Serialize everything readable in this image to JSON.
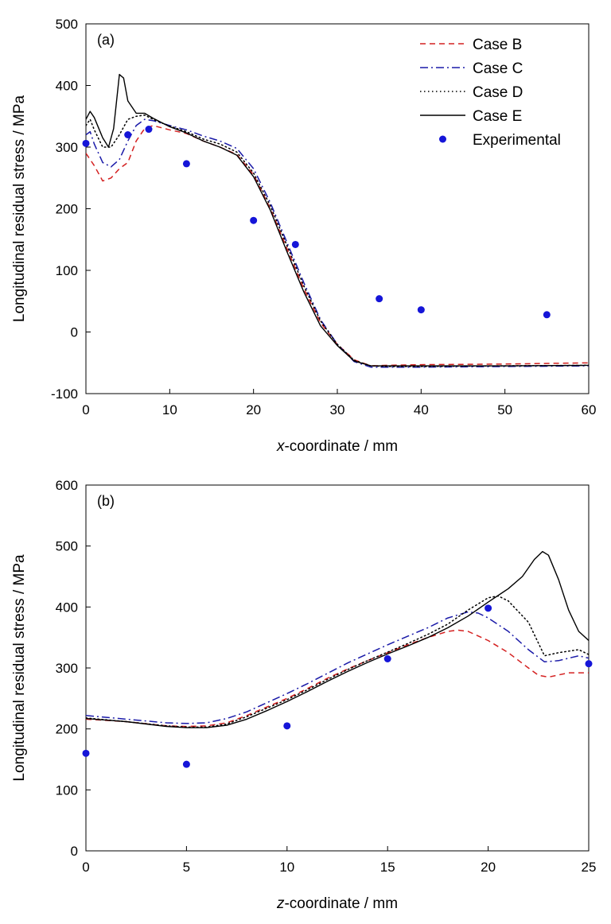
{
  "chart_data": [
    {
      "type": "line",
      "panel_label": "(a)",
      "xlabel_var": "x",
      "xlabel_rest": "-coordinate / mm",
      "ylabel": "Longitudinal residual stress / MPa",
      "xlim": [
        0,
        60
      ],
      "ylim": [
        -100,
        500
      ],
      "xticks": [
        0,
        10,
        20,
        30,
        40,
        50,
        60
      ],
      "yticks": [
        -100,
        0,
        100,
        200,
        300,
        400,
        500
      ],
      "grid": false,
      "legend_position": "top-right",
      "series": [
        {
          "name": "Case B",
          "style": "dashed",
          "color": "#d42020",
          "points": [
            [
              0,
              290
            ],
            [
              1,
              270
            ],
            [
              2,
              245
            ],
            [
              3,
              250
            ],
            [
              4,
              265
            ],
            [
              5,
              275
            ],
            [
              6,
              310
            ],
            [
              7,
              330
            ],
            [
              8,
              335
            ],
            [
              10,
              328
            ],
            [
              12,
              322
            ],
            [
              14,
              310
            ],
            [
              16,
              300
            ],
            [
              18,
              288
            ],
            [
              20,
              255
            ],
            [
              22,
              200
            ],
            [
              24,
              135
            ],
            [
              26,
              70
            ],
            [
              28,
              15
            ],
            [
              30,
              -20
            ],
            [
              32,
              -45
            ],
            [
              34,
              -55
            ],
            [
              36,
              -54
            ],
            [
              40,
              -53
            ],
            [
              50,
              -52
            ],
            [
              60,
              -50
            ]
          ]
        },
        {
          "name": "Case C",
          "style": "dashdot",
          "color": "#1a1aa8",
          "points": [
            [
              0,
              320
            ],
            [
              0.5,
              325
            ],
            [
              1,
              305
            ],
            [
              2,
              275
            ],
            [
              3,
              268
            ],
            [
              4,
              280
            ],
            [
              5,
              310
            ],
            [
              6,
              335
            ],
            [
              7,
              345
            ],
            [
              8,
              343
            ],
            [
              10,
              335
            ],
            [
              12,
              328
            ],
            [
              14,
              318
            ],
            [
              16,
              310
            ],
            [
              18,
              298
            ],
            [
              20,
              265
            ],
            [
              22,
              210
            ],
            [
              24,
              145
            ],
            [
              26,
              80
            ],
            [
              28,
              20
            ],
            [
              30,
              -20
            ],
            [
              32,
              -48
            ],
            [
              34,
              -57
            ],
            [
              36,
              -57
            ],
            [
              40,
              -57
            ],
            [
              50,
              -56
            ],
            [
              60,
              -55
            ]
          ]
        },
        {
          "name": "Case D",
          "style": "dotted",
          "color": "#000000",
          "points": [
            [
              0,
              335
            ],
            [
              0.5,
              345
            ],
            [
              1,
              328
            ],
            [
              2,
              300
            ],
            [
              3,
              300
            ],
            [
              4,
              320
            ],
            [
              5,
              345
            ],
            [
              6,
              350
            ],
            [
              7,
              352
            ],
            [
              8,
              345
            ],
            [
              10,
              334
            ],
            [
              12,
              325
            ],
            [
              14,
              313
            ],
            [
              16,
              305
            ],
            [
              18,
              292
            ],
            [
              20,
              258
            ],
            [
              22,
              205
            ],
            [
              24,
              140
            ],
            [
              26,
              75
            ],
            [
              28,
              18
            ],
            [
              30,
              -20
            ],
            [
              32,
              -46
            ],
            [
              34,
              -55
            ],
            [
              36,
              -56
            ],
            [
              40,
              -56
            ],
            [
              50,
              -55
            ],
            [
              60,
              -54
            ]
          ]
        },
        {
          "name": "Case E",
          "style": "solid",
          "color": "#000000",
          "points": [
            [
              0,
              345
            ],
            [
              0.5,
              358
            ],
            [
              1,
              348
            ],
            [
              2,
              315
            ],
            [
              2.7,
              300
            ],
            [
              3.3,
              330
            ],
            [
              4,
              418
            ],
            [
              4.5,
              412
            ],
            [
              5,
              375
            ],
            [
              6,
              355
            ],
            [
              7,
              355
            ],
            [
              8,
              347
            ],
            [
              10,
              333
            ],
            [
              12,
              323
            ],
            [
              14,
              310
            ],
            [
              16,
              300
            ],
            [
              18,
              287
            ],
            [
              20,
              252
            ],
            [
              22,
              198
            ],
            [
              24,
              130
            ],
            [
              26,
              65
            ],
            [
              28,
              10
            ],
            [
              30,
              -22
            ],
            [
              32,
              -47
            ],
            [
              34,
              -55
            ],
            [
              36,
              -55
            ],
            [
              40,
              -55
            ],
            [
              50,
              -55
            ],
            [
              60,
              -54
            ]
          ]
        }
      ],
      "experimental": {
        "name": "Experimental",
        "color": "#1515d8",
        "points": [
          [
            0,
            306
          ],
          [
            5,
            320
          ],
          [
            7.5,
            329
          ],
          [
            12,
            273
          ],
          [
            20,
            181
          ],
          [
            25,
            142
          ],
          [
            35,
            54
          ],
          [
            40,
            36
          ],
          [
            55,
            28
          ]
        ]
      }
    },
    {
      "type": "line",
      "panel_label": "(b)",
      "xlabel_var": "z",
      "xlabel_rest": "-coordinate / mm",
      "ylabel": "Longitudinal residual stress / MPa",
      "xlim": [
        0,
        25
      ],
      "ylim": [
        0,
        600
      ],
      "xticks": [
        0,
        5,
        10,
        15,
        20,
        25
      ],
      "yticks": [
        0,
        100,
        200,
        300,
        400,
        500,
        600
      ],
      "grid": false,
      "series": [
        {
          "name": "Case B",
          "style": "dashed",
          "color": "#d42020",
          "points": [
            [
              0,
              216
            ],
            [
              2,
              212
            ],
            [
              4,
              205
            ],
            [
              5,
              204
            ],
            [
              6,
              205
            ],
            [
              7,
              210
            ],
            [
              8,
              222
            ],
            [
              9,
              236
            ],
            [
              10,
              250
            ],
            [
              11,
              266
            ],
            [
              12,
              283
            ],
            [
              13,
              298
            ],
            [
              14,
              312
            ],
            [
              15,
              325
            ],
            [
              16,
              338
            ],
            [
              17,
              350
            ],
            [
              18,
              360
            ],
            [
              18.5,
              362
            ],
            [
              19,
              360
            ],
            [
              20,
              345
            ],
            [
              21,
              325
            ],
            [
              22,
              300
            ],
            [
              22.5,
              288
            ],
            [
              23,
              285
            ],
            [
              24,
              292
            ],
            [
              25,
              292
            ]
          ]
        },
        {
          "name": "Case C",
          "style": "dashdot",
          "color": "#1a1aa8",
          "points": [
            [
              0,
              222
            ],
            [
              2,
              216
            ],
            [
              4,
              210
            ],
            [
              5,
              209
            ],
            [
              6,
              210
            ],
            [
              7,
              217
            ],
            [
              8,
              228
            ],
            [
              9,
              243
            ],
            [
              10,
              258
            ],
            [
              11,
              274
            ],
            [
              12,
              291
            ],
            [
              13,
              308
            ],
            [
              14,
              323
            ],
            [
              15,
              338
            ],
            [
              16,
              352
            ],
            [
              17,
              366
            ],
            [
              18,
              382
            ],
            [
              19,
              392
            ],
            [
              19.5,
              390
            ],
            [
              20,
              382
            ],
            [
              21,
              360
            ],
            [
              22,
              330
            ],
            [
              22.8,
              310
            ],
            [
              23.5,
              312
            ],
            [
              24.5,
              320
            ],
            [
              25,
              316
            ]
          ]
        },
        {
          "name": "Case D",
          "style": "dotted",
          "color": "#000000",
          "points": [
            [
              0,
              218
            ],
            [
              2,
              212
            ],
            [
              4,
              205
            ],
            [
              5,
              203
            ],
            [
              6,
              203
            ],
            [
              7,
              208
            ],
            [
              8,
              220
            ],
            [
              9,
              234
            ],
            [
              10,
              248
            ],
            [
              11,
              264
            ],
            [
              12,
              281
            ],
            [
              13,
              297
            ],
            [
              14,
              312
            ],
            [
              15,
              326
            ],
            [
              16,
              340
            ],
            [
              17,
              355
            ],
            [
              18,
              372
            ],
            [
              19,
              395
            ],
            [
              20,
              415
            ],
            [
              20.5,
              418
            ],
            [
              21,
              410
            ],
            [
              22,
              375
            ],
            [
              22.8,
              320
            ],
            [
              23.5,
              325
            ],
            [
              24.5,
              330
            ],
            [
              25,
              322
            ]
          ]
        },
        {
          "name": "Case E",
          "style": "solid",
          "color": "#000000",
          "points": [
            [
              0,
              217
            ],
            [
              2,
              212
            ],
            [
              4,
              204
            ],
            [
              5,
              202
            ],
            [
              6,
              202
            ],
            [
              7,
              206
            ],
            [
              8,
              216
            ],
            [
              9,
              230
            ],
            [
              10,
              245
            ],
            [
              11,
              261
            ],
            [
              12,
              278
            ],
            [
              13,
              294
            ],
            [
              14,
              309
            ],
            [
              15,
              323
            ],
            [
              16,
              336
            ],
            [
              17,
              350
            ],
            [
              18,
              366
            ],
            [
              19,
              385
            ],
            [
              20,
              408
            ],
            [
              21,
              430
            ],
            [
              21.7,
              450
            ],
            [
              22.3,
              478
            ],
            [
              22.7,
              491
            ],
            [
              23,
              485
            ],
            [
              23.5,
              445
            ],
            [
              24,
              395
            ],
            [
              24.5,
              360
            ],
            [
              25,
              345
            ]
          ]
        }
      ],
      "experimental": {
        "name": "Experimental",
        "color": "#1515d8",
        "points": [
          [
            0,
            160
          ],
          [
            5,
            142
          ],
          [
            10,
            205
          ],
          [
            15,
            315
          ],
          [
            20,
            398
          ],
          [
            25,
            307
          ]
        ]
      }
    }
  ]
}
